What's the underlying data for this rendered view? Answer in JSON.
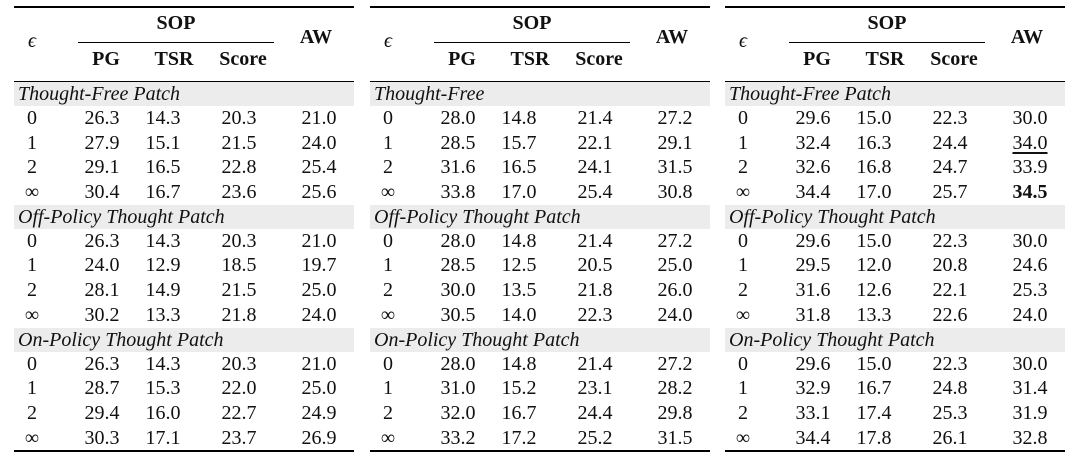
{
  "header": {
    "eps": "ϵ",
    "sop": "SOP",
    "pg": "PG",
    "tsr": "TSR",
    "score": "Score",
    "aw": "AW"
  },
  "panels": [
    {
      "sections": [
        {
          "title": "Thought-Free Patch",
          "rows": [
            [
              "0",
              "26.3",
              "14.3",
              "20.3",
              "21.0"
            ],
            [
              "1",
              "27.9",
              "15.1",
              "21.5",
              "24.0"
            ],
            [
              "2",
              "29.1",
              "16.5",
              "22.8",
              "25.4"
            ],
            [
              "∞",
              "30.4",
              "16.7",
              "23.6",
              "25.6"
            ]
          ]
        },
        {
          "title": "Off-Policy Thought Patch",
          "rows": [
            [
              "0",
              "26.3",
              "14.3",
              "20.3",
              "21.0"
            ],
            [
              "1",
              "24.0",
              "12.9",
              "18.5",
              "19.7"
            ],
            [
              "2",
              "28.1",
              "14.9",
              "21.5",
              "25.0"
            ],
            [
              "∞",
              "30.2",
              "13.3",
              "21.8",
              "24.0"
            ]
          ]
        },
        {
          "title": "On-Policy Thought Patch",
          "rows": [
            [
              "0",
              "26.3",
              "14.3",
              "20.3",
              "21.0"
            ],
            [
              "1",
              "28.7",
              "15.3",
              "22.0",
              "25.0"
            ],
            [
              "2",
              "29.4",
              "16.0",
              "22.7",
              "24.9"
            ],
            [
              "∞",
              "30.3",
              "17.1",
              "23.7",
              "26.9"
            ]
          ]
        }
      ]
    },
    {
      "sections": [
        {
          "title": "Thought-Free",
          "rows": [
            [
              "0",
              "28.0",
              "14.8",
              "21.4",
              "27.2"
            ],
            [
              "1",
              "28.5",
              "15.7",
              "22.1",
              "29.1"
            ],
            [
              "2",
              "31.6",
              "16.5",
              "24.1",
              "31.5"
            ],
            [
              "∞",
              "33.8",
              "17.0",
              "25.4",
              "30.8"
            ]
          ]
        },
        {
          "title": "Off-Policy Thought Patch",
          "rows": [
            [
              "0",
              "28.0",
              "14.8",
              "21.4",
              "27.2"
            ],
            [
              "1",
              "28.5",
              "12.5",
              "20.5",
              "25.0"
            ],
            [
              "2",
              "30.0",
              "13.5",
              "21.8",
              "26.0"
            ],
            [
              "∞",
              "30.5",
              "14.0",
              "22.3",
              "24.0"
            ]
          ]
        },
        {
          "title": "On-Policy Thought Patch",
          "rows": [
            [
              "0",
              "28.0",
              "14.8",
              "21.4",
              "27.2"
            ],
            [
              "1",
              "31.0",
              "15.2",
              "23.1",
              "28.2"
            ],
            [
              "2",
              "32.0",
              "16.7",
              "24.4",
              "29.8"
            ],
            [
              "∞",
              "33.2",
              "17.2",
              "25.2",
              "31.5"
            ]
          ]
        }
      ]
    },
    {
      "sections": [
        {
          "title": "Thought-Free Patch",
          "rows": [
            [
              "0",
              "29.6",
              "15.0",
              "22.3",
              "30.0"
            ],
            [
              "1",
              "32.4",
              "16.3",
              "24.4",
              "34.0"
            ],
            [
              "2",
              "32.6",
              "16.8",
              "24.7",
              "33.9"
            ],
            [
              "∞",
              "34.4",
              "17.0",
              "25.7",
              "34.5"
            ]
          ]
        },
        {
          "title": "Off-Policy Thought Patch",
          "rows": [
            [
              "0",
              "29.6",
              "15.0",
              "22.3",
              "30.0"
            ],
            [
              "1",
              "29.5",
              "12.0",
              "20.8",
              "24.6"
            ],
            [
              "2",
              "31.6",
              "12.6",
              "22.1",
              "25.3"
            ],
            [
              "∞",
              "31.8",
              "13.3",
              "22.6",
              "24.0"
            ]
          ]
        },
        {
          "title": "On-Policy Thought Patch",
          "rows": [
            [
              "0",
              "29.6",
              "15.0",
              "22.3",
              "30.0"
            ],
            [
              "1",
              "32.9",
              "16.7",
              "24.8",
              "31.4"
            ],
            [
              "2",
              "33.1",
              "17.4",
              "25.3",
              "31.9"
            ],
            [
              "∞",
              "34.4",
              "17.8",
              "26.1",
              "32.8"
            ]
          ]
        }
      ]
    }
  ]
}
